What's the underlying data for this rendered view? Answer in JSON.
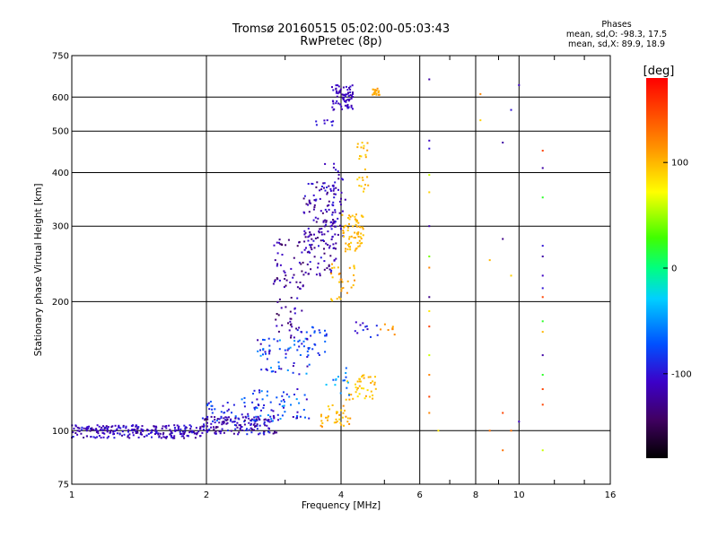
{
  "chart_data": {
    "type": "scatter",
    "title": "Tromsø 20160515 05:02:00-05:03:43",
    "subtitle": "RwPretec (8p)",
    "xlabel": "Frequency [MHz]",
    "ylabel": "Stationary phase Virtual Height [km]",
    "x_scale": "log",
    "y_scale": "log",
    "xlim": [
      1,
      16
    ],
    "ylim": [
      75,
      750
    ],
    "x_ticks": [
      1,
      2,
      4,
      6,
      8,
      10,
      16
    ],
    "x_tick_labels": [
      "1",
      "2",
      "4",
      "6",
      "8",
      "10",
      "16"
    ],
    "y_ticks": [
      75,
      100,
      200,
      300,
      400,
      500,
      600,
      750
    ],
    "y_tick_labels": [
      "75",
      "100",
      "200",
      "300",
      "400",
      "500",
      "600",
      "750"
    ],
    "grid": true,
    "colorbar": {
      "label": "[deg]",
      "range": [
        -180,
        180
      ],
      "ticks": [
        100,
        0,
        -100
      ],
      "tick_labels": [
        "100",
        "0",
        "-100"
      ]
    },
    "phase_stats": {
      "title": "Phases",
      "o_line": "mean, sd,O: -98.3, 17.5",
      "x_line": "mean, sd,X:  89.9, 18.9"
    },
    "clusters": [
      {
        "f": [
          1.0,
          1.95
        ],
        "h": [
          96,
          103
        ],
        "phase": [
          -130,
          -90
        ],
        "n": 240
      },
      {
        "f": [
          1.95,
          2.9
        ],
        "h": [
          98,
          108
        ],
        "phase": [
          -135,
          -85
        ],
        "n": 150
      },
      {
        "f": [
          2.0,
          2.6
        ],
        "h": [
          105,
          118
        ],
        "phase": [
          -110,
          -60
        ],
        "n": 30
      },
      {
        "f": [
          2.4,
          3.4
        ],
        "h": [
          105,
          125
        ],
        "phase": [
          -120,
          -40
        ],
        "n": 70
      },
      {
        "f": [
          2.6,
          3.4
        ],
        "h": [
          135,
          165
        ],
        "phase": [
          -120,
          -40
        ],
        "n": 60
      },
      {
        "f": [
          2.8,
          3.3
        ],
        "h": [
          160,
          280
        ],
        "phase": [
          -150,
          -100
        ],
        "n": 80
      },
      {
        "f": [
          3.2,
          3.8
        ],
        "h": [
          150,
          175
        ],
        "phase": [
          -110,
          -60
        ],
        "n": 30
      },
      {
        "f": [
          3.3,
          3.9
        ],
        "h": [
          230,
          380
        ],
        "phase": [
          -140,
          -95
        ],
        "n": 150
      },
      {
        "f": [
          3.6,
          4.1
        ],
        "h": [
          280,
          420
        ],
        "phase": [
          -130,
          -95
        ],
        "n": 40
      },
      {
        "f": [
          3.8,
          4.25
        ],
        "h": [
          560,
          640
        ],
        "phase": [
          -120,
          -100
        ],
        "n": 70
      },
      {
        "f": [
          3.5,
          3.85
        ],
        "h": [
          510,
          540
        ],
        "phase": [
          -110,
          -95
        ],
        "n": 8
      },
      {
        "f": [
          3.8,
          4.3
        ],
        "h": [
          200,
          245
        ],
        "phase": [
          90,
          120
        ],
        "n": 30
      },
      {
        "f": [
          4.0,
          4.5
        ],
        "h": [
          260,
          320
        ],
        "phase": [
          90,
          110
        ],
        "n": 70
      },
      {
        "f": [
          4.35,
          4.6
        ],
        "h": [
          360,
          470
        ],
        "phase": [
          85,
          110
        ],
        "n": 25
      },
      {
        "f": [
          4.7,
          4.95
        ],
        "h": [
          605,
          630
        ],
        "phase": [
          100,
          115
        ],
        "n": 18
      },
      {
        "f": [
          3.6,
          4.2
        ],
        "h": [
          102,
          115
        ],
        "phase": [
          85,
          120
        ],
        "n": 35
      },
      {
        "f": [
          4.1,
          4.8
        ],
        "h": [
          115,
          135
        ],
        "phase": [
          80,
          110
        ],
        "n": 40
      },
      {
        "f": [
          3.7,
          4.2
        ],
        "h": [
          120,
          140
        ],
        "phase": [
          -80,
          -30
        ],
        "n": 15
      },
      {
        "f": [
          4.3,
          4.9
        ],
        "h": [
          165,
          180
        ],
        "phase": [
          -120,
          -80
        ],
        "n": 12
      },
      {
        "f": [
          4.9,
          5.3
        ],
        "h": [
          165,
          180
        ],
        "phase": [
          100,
          140
        ],
        "n": 8
      }
    ],
    "column_points": [
      {
        "f": 6.3,
        "h": [
          660,
          475,
          455,
          395,
          360,
          300,
          255,
          240,
          205,
          190,
          175,
          150,
          135,
          120,
          110
        ],
        "phase": [
          -120,
          -110,
          -100,
          60,
          90,
          -120,
          40,
          120,
          -130,
          80,
          150,
          60,
          120,
          150,
          120
        ]
      },
      {
        "f": 6.6,
        "h": [
          100
        ],
        "phase": [
          80
        ]
      },
      {
        "f": 8.2,
        "h": [
          610,
          530
        ],
        "phase": [
          120,
          90
        ]
      },
      {
        "f": 8.6,
        "h": [
          250,
          100
        ],
        "phase": [
          100,
          130
        ]
      },
      {
        "f": 9.2,
        "h": [
          470,
          280,
          110,
          90
        ],
        "phase": [
          -120,
          -130,
          150,
          130
        ]
      },
      {
        "f": 9.6,
        "h": [
          560,
          230,
          100
        ],
        "phase": [
          -100,
          90,
          130
        ]
      },
      {
        "f": 10.0,
        "h": [
          640,
          105
        ],
        "phase": [
          -110,
          -110
        ]
      },
      {
        "f": 11.3,
        "h": [
          450,
          410,
          350,
          270,
          255,
          230,
          215,
          205,
          180,
          170,
          150,
          135,
          125,
          115,
          90
        ],
        "phase": [
          150,
          -120,
          20,
          -100,
          -120,
          -110,
          -100,
          150,
          20,
          100,
          -120,
          20,
          150,
          150,
          60
        ]
      }
    ]
  }
}
